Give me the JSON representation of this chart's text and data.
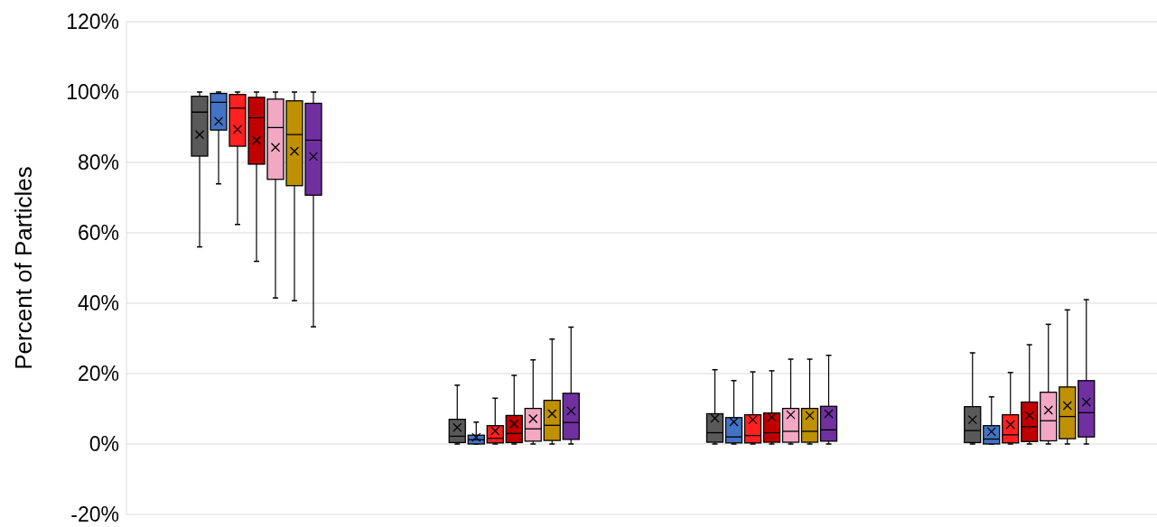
{
  "chart_data": {
    "type": "box",
    "ylabel": "Percent of Particles",
    "categories": [
      null,
      null,
      null,
      null
    ],
    "ylim": [
      -20,
      120
    ],
    "yticks": [
      {
        "value": -20,
        "label": "-20%"
      },
      {
        "value": 0,
        "label": "0%"
      },
      {
        "value": 20,
        "label": "20%"
      },
      {
        "value": 40,
        "label": "40%"
      },
      {
        "value": 60,
        "label": "60%"
      },
      {
        "value": 80,
        "label": "80%"
      },
      {
        "value": 100,
        "label": "100%"
      },
      {
        "value": 120,
        "label": "120%"
      }
    ],
    "grid": "y",
    "legend": false,
    "marker": "cross",
    "series": [
      {
        "color": "#595959",
        "boxes": [
          {
            "low": 56,
            "q1": 81.8,
            "median": 94.3,
            "q3": 98.8,
            "high": 100,
            "mean": 87.9
          },
          {
            "low": 0,
            "q1": 0.4,
            "median": 2.2,
            "q3": 7,
            "high": 16.7,
            "mean": 4.7
          },
          {
            "low": 0,
            "q1": 0.5,
            "median": 3.2,
            "q3": 8.6,
            "high": 21.1,
            "mean": 7.3
          },
          {
            "low": 0,
            "q1": 0.4,
            "median": 3.8,
            "q3": 10.6,
            "high": 25.9,
            "mean": 6.9
          }
        ]
      },
      {
        "color": "#4472c4",
        "boxes": [
          {
            "low": 73.9,
            "q1": 89.2,
            "median": 97.1,
            "q3": 99.6,
            "high": 100,
            "mean": 91.7
          },
          {
            "low": 0,
            "q1": 0,
            "median": 1.2,
            "q3": 2.5,
            "high": 6.2,
            "mean": 1.9
          },
          {
            "low": 0,
            "q1": 0.3,
            "median": 2,
            "q3": 7.5,
            "high": 18,
            "mean": 6.3
          },
          {
            "low": 0,
            "q1": 0,
            "median": 1.4,
            "q3": 5.2,
            "high": 13.4,
            "mean": 3.5
          }
        ]
      },
      {
        "color": "#ff2020",
        "boxes": [
          {
            "low": 62.4,
            "q1": 84.6,
            "median": 95.4,
            "q3": 99.3,
            "high": 100,
            "mean": 89.4
          },
          {
            "low": 0,
            "q1": 0.3,
            "median": 1.6,
            "q3": 5.2,
            "high": 13,
            "mean": 3.7
          },
          {
            "low": 0,
            "q1": 0.3,
            "median": 2.4,
            "q3": 8.3,
            "high": 20.5,
            "mean": 6.9
          },
          {
            "low": 0,
            "q1": 0.3,
            "median": 2.6,
            "q3": 8.3,
            "high": 20.3,
            "mean": 5.5
          }
        ]
      },
      {
        "color": "#c00000",
        "boxes": [
          {
            "low": 51.9,
            "q1": 79.5,
            "median": 92.7,
            "q3": 98.5,
            "high": 100,
            "mean": 86.3
          },
          {
            "low": 0,
            "q1": 0.4,
            "median": 3,
            "q3": 8.1,
            "high": 19.5,
            "mean": 5.7
          },
          {
            "low": 0,
            "q1": 0.5,
            "median": 3.2,
            "q3": 8.8,
            "high": 20.8,
            "mean": 7.6
          },
          {
            "low": 0,
            "q1": 0.7,
            "median": 4.9,
            "q3": 11.9,
            "high": 28.2,
            "mean": 8.1
          }
        ]
      },
      {
        "color": "#f2a7c3",
        "boxes": [
          {
            "low": 41.5,
            "q1": 75.2,
            "median": 89.9,
            "q3": 98,
            "high": 100,
            "mean": 84.3
          },
          {
            "low": 0,
            "q1": 0.8,
            "median": 4.3,
            "q3": 10.1,
            "high": 23.9,
            "mean": 7.2
          },
          {
            "low": 0,
            "q1": 0.5,
            "median": 3.6,
            "q3": 10.1,
            "high": 24.1,
            "mean": 8.3
          },
          {
            "low": 0,
            "q1": 0.9,
            "median": 6.6,
            "q3": 14.7,
            "high": 34,
            "mean": 9.6
          }
        ]
      },
      {
        "color": "#bf9000",
        "boxes": [
          {
            "low": 40.7,
            "q1": 73.4,
            "median": 87.9,
            "q3": 97.5,
            "high": 100,
            "mean": 83.2
          },
          {
            "low": 0,
            "q1": 1,
            "median": 5.3,
            "q3": 12.4,
            "high": 29.8,
            "mean": 8.6
          },
          {
            "low": 0,
            "q1": 0.5,
            "median": 3.6,
            "q3": 10.1,
            "high": 24.1,
            "mean": 8.1
          },
          {
            "low": 0,
            "q1": 1.5,
            "median": 7.8,
            "q3": 16.2,
            "high": 38.1,
            "mean": 10.9
          }
        ]
      },
      {
        "color": "#7030a0",
        "boxes": [
          {
            "low": 33.3,
            "q1": 70.7,
            "median": 86.3,
            "q3": 96.8,
            "high": 100,
            "mean": 81.7
          },
          {
            "low": 0,
            "q1": 1.3,
            "median": 6.1,
            "q3": 14.4,
            "high": 33.2,
            "mean": 9.4
          },
          {
            "low": 0,
            "q1": 0.8,
            "median": 4,
            "q3": 10.7,
            "high": 25.2,
            "mean": 8.6
          },
          {
            "low": 0,
            "q1": 2,
            "median": 8.9,
            "q3": 18,
            "high": 41,
            "mean": 11.9
          }
        ]
      }
    ]
  }
}
